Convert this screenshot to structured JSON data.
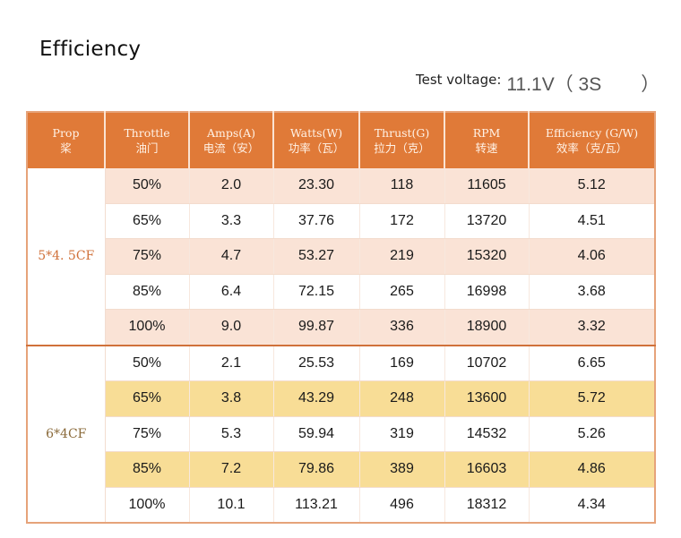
{
  "title": "Efficiency",
  "test_voltage": {
    "label": "Test voltage:",
    "value": "11.1V（ 3S",
    "close": "）"
  },
  "columns": [
    {
      "en": "Prop",
      "zh": "桨"
    },
    {
      "en": "Throttle",
      "zh": "油门"
    },
    {
      "en": "Amps(A)",
      "zh": "电流（安）"
    },
    {
      "en": "Watts(W)",
      "zh": "功率（瓦）"
    },
    {
      "en": "Thrust(G)",
      "zh": "拉力（克）"
    },
    {
      "en": "RPM",
      "zh": "转速"
    },
    {
      "en": "Efficiency (G/W)",
      "zh": "效率（克/瓦）"
    }
  ],
  "groups": [
    {
      "prop": "5*4. 5CF",
      "rows": [
        [
          "50%",
          "2.0",
          "23.30",
          "118",
          "11605",
          "5.12"
        ],
        [
          "65%",
          "3.3",
          "37.76",
          "172",
          "13720",
          "4.51"
        ],
        [
          "75%",
          "4.7",
          "53.27",
          "219",
          "15320",
          "4.06"
        ],
        [
          "85%",
          "6.4",
          "72.15",
          "265",
          "16998",
          "3.68"
        ],
        [
          "100%",
          "9.0",
          "99.87",
          "336",
          "18900",
          "3.32"
        ]
      ]
    },
    {
      "prop": "6*4CF",
      "rows": [
        [
          "50%",
          "2.1",
          "25.53",
          "169",
          "10702",
          "6.65"
        ],
        [
          "65%",
          "3.8",
          "43.29",
          "248",
          "13600",
          "5.72"
        ],
        [
          "75%",
          "5.3",
          "59.94",
          "319",
          "14532",
          "5.26"
        ],
        [
          "85%",
          "7.2",
          "79.86",
          "389",
          "16603",
          "4.86"
        ],
        [
          "100%",
          "10.1",
          "113.21",
          "496",
          "18312",
          "4.34"
        ]
      ]
    }
  ],
  "colors": {
    "header": "#e07a38",
    "group1_stripe": "#fae3d6",
    "group2_stripe": "#f8dd96",
    "group1_prop_text": "#d0713a",
    "group2_prop_text": "#8a6a3a"
  }
}
